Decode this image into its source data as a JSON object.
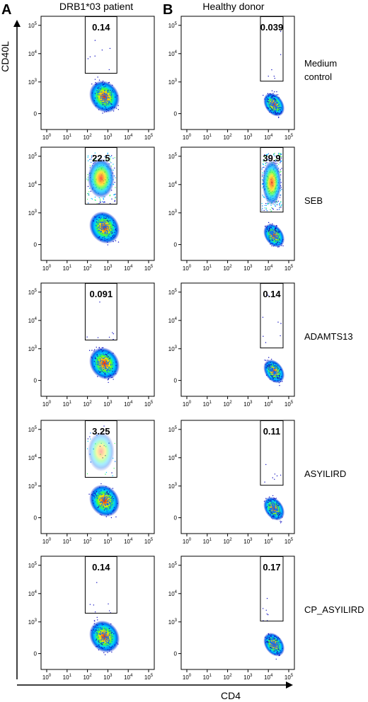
{
  "figure": {
    "panel_a_letter": "A",
    "panel_b_letter": "B",
    "col_a_title": "DRB1*03 patient",
    "col_b_title": "Healthy donor",
    "y_axis_label": "CD40L",
    "x_axis_label": "CD4"
  },
  "chart_data": {
    "type": "scatter",
    "plot_kind": "flow-cytometry-density",
    "x_axis": {
      "label": "CD4",
      "ticks": [
        "10^0",
        "10^1",
        "10^2",
        "10^3",
        "10^4",
        "10^5"
      ]
    },
    "y_axis": {
      "label": "CD40L",
      "ticks": [
        "0",
        "10^3",
        "10^4",
        "10^5"
      ]
    },
    "density_colors": [
      "#1010c0",
      "#0070ff",
      "#00c8ff",
      "#40ff60",
      "#ffd000",
      "#ff2000"
    ],
    "columns": [
      "DRB1*03 patient",
      "Healthy donor"
    ],
    "rows": [
      {
        "condition": "Medium control",
        "patient_gate_pct": "0.14",
        "donor_gate_pct": "0.039"
      },
      {
        "condition": "SEB",
        "patient_gate_pct": "22.5",
        "donor_gate_pct": "39.9"
      },
      {
        "condition": "ADAMTS13",
        "patient_gate_pct": "0.091",
        "donor_gate_pct": "0.14"
      },
      {
        "condition": "ASYILIRD",
        "patient_gate_pct": "3.25",
        "donor_gate_pct": "0.11"
      },
      {
        "condition": "CP_ASYILIRD",
        "patient_gate_pct": "0.14",
        "donor_gate_pct": "0.17"
      }
    ]
  }
}
